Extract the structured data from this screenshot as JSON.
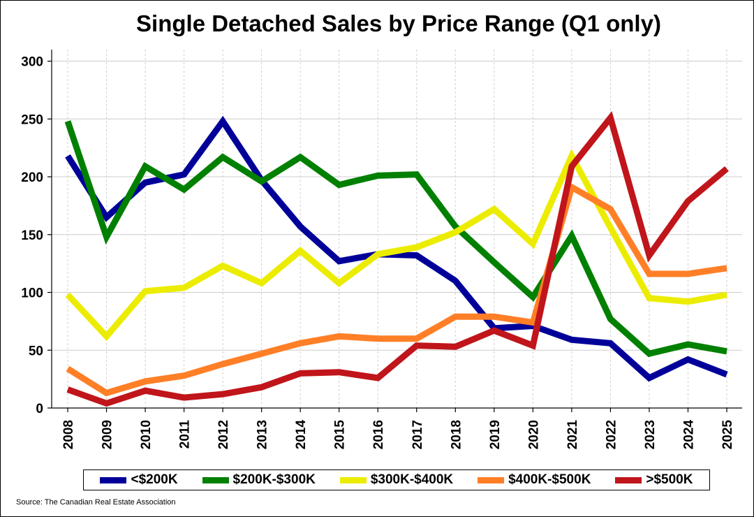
{
  "chart_data": {
    "type": "line",
    "title": "Single Detached Sales by Price Range (Q1 only)",
    "xlabel": "",
    "ylabel": "",
    "categories": [
      "2008",
      "2009",
      "2010",
      "2011",
      "2012",
      "2013",
      "2014",
      "2015",
      "2016",
      "2017",
      "2018",
      "2019",
      "2020",
      "2021",
      "2022",
      "2023",
      "2024",
      "2025"
    ],
    "yticks": [
      0,
      50,
      100,
      150,
      200,
      250,
      300
    ],
    "ylim": [
      0,
      310
    ],
    "grid": true,
    "legend_position": "bottom",
    "series": [
      {
        "name": "<$200K",
        "color": "#000099",
        "values": [
          218,
          165,
          195,
          202,
          248,
          197,
          157,
          127,
          133,
          132,
          110,
          69,
          71,
          59,
          56,
          26,
          42,
          29
        ]
      },
      {
        "name": "$200K-$300K",
        "color": "#008000",
        "values": [
          248,
          148,
          209,
          189,
          217,
          196,
          217,
          193,
          201,
          202,
          157,
          126,
          96,
          149,
          77,
          47,
          55,
          49
        ]
      },
      {
        "name": "$300K-$400K",
        "color": "#ecec00",
        "values": [
          98,
          62,
          101,
          104,
          123,
          108,
          136,
          108,
          133,
          139,
          152,
          172,
          142,
          218,
          156,
          95,
          92,
          98
        ]
      },
      {
        "name": "$400K-$500K",
        "color": "#ff7f27",
        "values": [
          34,
          13,
          23,
          28,
          38,
          47,
          56,
          62,
          60,
          60,
          79,
          79,
          74,
          191,
          172,
          116,
          116,
          121
        ]
      },
      {
        "name": ">$500K",
        "color": "#c0151b",
        "values": [
          16,
          4,
          15,
          9,
          12,
          18,
          30,
          31,
          26,
          54,
          53,
          67,
          54,
          209,
          251,
          132,
          179,
          207
        ]
      }
    ]
  },
  "source": "Source: The Canadian Real Estate Association"
}
